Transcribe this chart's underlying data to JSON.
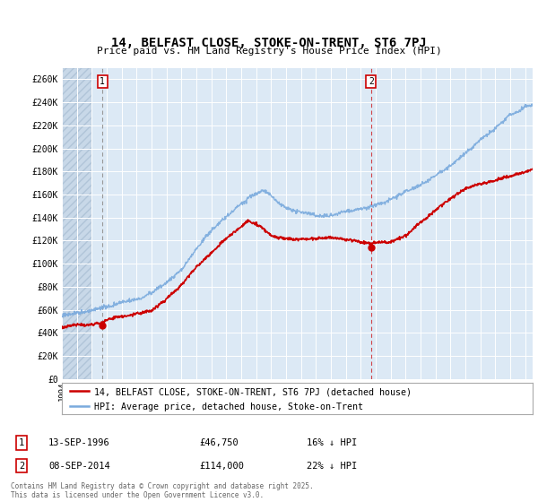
{
  "title": "14, BELFAST CLOSE, STOKE-ON-TRENT, ST6 7PJ",
  "subtitle": "Price paid vs. HM Land Registry's House Price Index (HPI)",
  "ylabel_ticks": [
    "£0",
    "£20K",
    "£40K",
    "£60K",
    "£80K",
    "£100K",
    "£120K",
    "£140K",
    "£160K",
    "£180K",
    "£200K",
    "£220K",
    "£240K",
    "£260K"
  ],
  "ytick_values": [
    0,
    20000,
    40000,
    60000,
    80000,
    100000,
    120000,
    140000,
    160000,
    180000,
    200000,
    220000,
    240000,
    260000
  ],
  "ylim": [
    0,
    270000
  ],
  "xlim_min": 1994,
  "xlim_max": 2025.5,
  "sale1_x": 1996.71,
  "sale1_y": 46750,
  "sale2_x": 2014.69,
  "sale2_y": 114000,
  "legend_red": "14, BELFAST CLOSE, STOKE-ON-TRENT, ST6 7PJ (detached house)",
  "legend_blue": "HPI: Average price, detached house, Stoke-on-Trent",
  "annotation1_date": "13-SEP-1996",
  "annotation1_price": "£46,750",
  "annotation1_hpi": "16% ↓ HPI",
  "annotation2_date": "08-SEP-2014",
  "annotation2_price": "£114,000",
  "annotation2_hpi": "22% ↓ HPI",
  "footer": "Contains HM Land Registry data © Crown copyright and database right 2025.\nThis data is licensed under the Open Government Licence v3.0.",
  "bg_color": "#dce9f5",
  "red_color": "#cc0000",
  "blue_color": "#7aaadd",
  "hatch_region_end": 1996.0
}
